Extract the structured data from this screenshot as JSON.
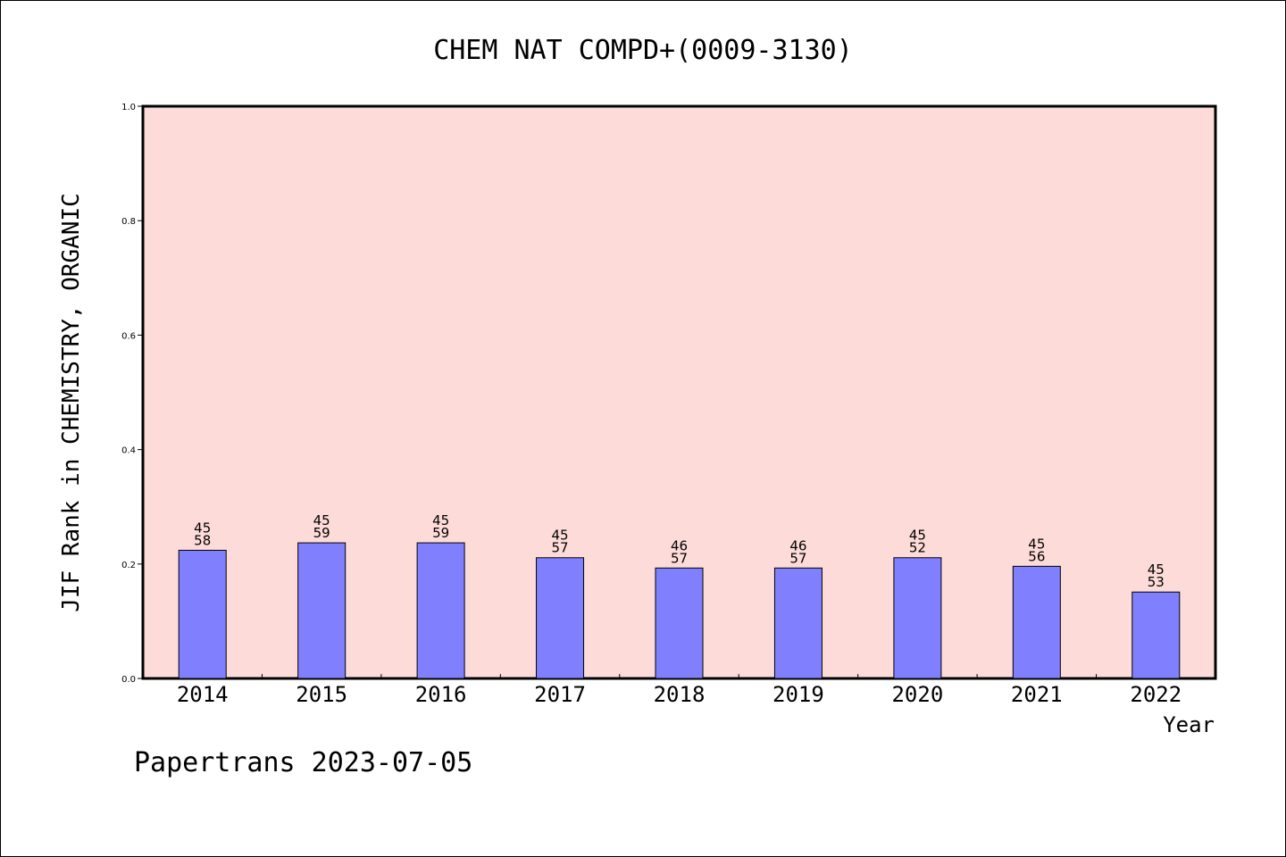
{
  "title": "CHEM NAT COMPD+(0009-3130)",
  "footer": "Papertrans 2023-07-05",
  "colors": {
    "plot_background": "#fddbd8",
    "bar_fill": "#8080ff",
    "bar_stroke": "#000000"
  },
  "chart_data": {
    "type": "bar",
    "title": "CHEM NAT COMPD+(0009-3130)",
    "xlabel": "Year",
    "ylabel": "JIF Rank in CHEMISTRY, ORGANIC",
    "ylim": [
      0,
      1.0
    ],
    "yticks": [
      "0.0",
      "0.2",
      "0.4",
      "0.6",
      "0.8",
      "1.0"
    ],
    "grid": false,
    "categories": [
      "2014",
      "2015",
      "2016",
      "2017",
      "2018",
      "2019",
      "2020",
      "2021",
      "2022"
    ],
    "values": [
      0.224,
      0.237,
      0.237,
      0.211,
      0.193,
      0.193,
      0.211,
      0.196,
      0.151
    ],
    "labels_top": [
      "45",
      "45",
      "45",
      "45",
      "46",
      "46",
      "45",
      "45",
      "45"
    ],
    "labels_bottom": [
      "58",
      "59",
      "59",
      "57",
      "57",
      "57",
      "52",
      "56",
      "53"
    ]
  }
}
